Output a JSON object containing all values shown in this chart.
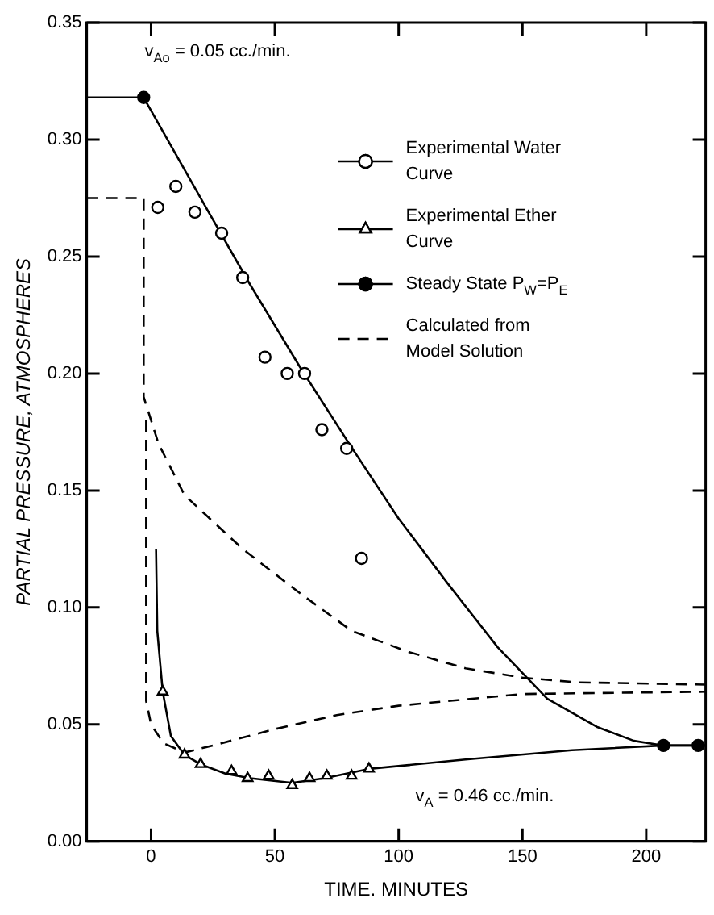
{
  "chart_data": {
    "type": "scatter",
    "xlabel": "TIME. MINUTES",
    "ylabel": "PARTIAL PRESSURE, ATMOSPHERES",
    "xlim": [
      -26,
      224
    ],
    "ylim": [
      0,
      0.35
    ],
    "xticks": [
      0,
      50,
      100,
      150,
      200
    ],
    "yticks": [
      {
        "value": 0,
        "label": "0.00"
      },
      {
        "value": 0.05,
        "label": "0.05"
      },
      {
        "value": 0.1,
        "label": "0.10"
      },
      {
        "value": 0.15,
        "label": "0.15"
      },
      {
        "value": 0.2,
        "label": "0.20"
      },
      {
        "value": 0.25,
        "label": "0.25"
      },
      {
        "value": 0.3,
        "label": "0.30"
      },
      {
        "value": 0.35,
        "label": "0.35"
      }
    ],
    "legend": "top right",
    "annotations": [
      "v$_{Ao}$ = 0.05 cc./min.",
      "v$_{A}$ = 0.46 cc./min."
    ],
    "series": [
      {
        "name": "Experimental Water Curve",
        "type": "scatter",
        "marker": "circle",
        "color": "#000000",
        "x": [
          2.7,
          10,
          17.7,
          28.5,
          37,
          46,
          55,
          62,
          69,
          79,
          85
        ],
        "values": [
          0.271,
          0.28,
          0.269,
          0.26,
          0.241,
          0.207,
          0.2,
          0.2,
          0.176,
          0.168,
          0.121
        ]
      },
      {
        "name": "Experimental Ether Curve",
        "type": "scatter",
        "marker": "triangle",
        "color": "#000000",
        "x": [
          4.7,
          13.5,
          20,
          32.5,
          39,
          47.5,
          57,
          64,
          71,
          81,
          88
        ],
        "values": [
          0.064,
          0.037,
          0.033,
          0.03,
          0.027,
          0.028,
          0.024,
          0.027,
          0.028,
          0.028,
          0.031
        ]
      },
      {
        "name": "Steady State P$_{W}$=P$_{E}$",
        "type": "scatter",
        "marker": "circle",
        "color": "#000000",
        "x": [
          -3,
          207,
          221
        ],
        "values": [
          0.318,
          0.041,
          0.041
        ]
      },
      {
        "name": "Calculated from Model Solution",
        "type": "line",
        "line_style": "dashed",
        "marker": "none",
        "color": "#000000",
        "x": [
          -26,
          -3,
          -3,
          0,
          3,
          13.5,
          37,
          59,
          81,
          104,
          127,
          150,
          172,
          224
        ],
        "values": [
          0.275,
          0.275,
          0.19,
          0.18,
          0.17,
          0.148,
          0.125,
          0.107,
          0.09,
          0.081,
          0.074,
          0.07,
          0.068,
          0.067
        ]
      },
      {
        "type": "line",
        "line_style": "dashed",
        "marker": "none",
        "color": "#000000",
        "x": [
          -2,
          -2,
          0,
          5,
          13.5,
          25,
          50,
          75,
          100,
          150,
          224
        ],
        "values": [
          0.18,
          0.06,
          0.05,
          0.042,
          0.038,
          0.041,
          0.048,
          0.054,
          0.058,
          0.063,
          0.064
        ]
      },
      {
        "type": "line",
        "line_style": "solid",
        "marker": "none",
        "color": "#000000",
        "x": [
          -26,
          -3,
          20,
          40,
          60,
          80,
          100,
          120,
          140,
          160,
          180,
          195,
          207,
          224
        ],
        "values": [
          0.318,
          0.318,
          0.275,
          0.238,
          0.203,
          0.17,
          0.138,
          0.11,
          0.083,
          0.061,
          0.049,
          0.043,
          0.041,
          0.041
        ]
      },
      {
        "type": "line",
        "line_style": "solid",
        "marker": "none",
        "color": "#000000",
        "x": [
          2,
          2.5,
          4.7,
          8,
          13.5,
          20,
          30,
          40,
          57,
          70,
          88,
          127,
          170,
          207,
          224
        ],
        "values": [
          0.125,
          0.09,
          0.064,
          0.045,
          0.037,
          0.033,
          0.029,
          0.027,
          0.025,
          0.027,
          0.031,
          0.035,
          0.039,
          0.041,
          0.041
        ]
      }
    ]
  }
}
